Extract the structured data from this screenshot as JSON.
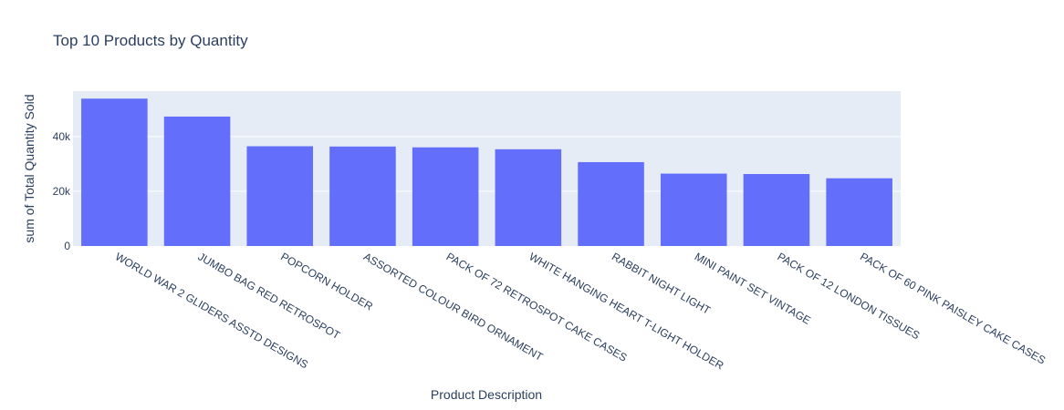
{
  "chart_data": {
    "type": "bar",
    "title": "Top 10 Products by Quantity",
    "xlabel": "Product Description",
    "ylabel": "sum of Total Quantity Sold",
    "categories": [
      "WORLD WAR 2 GLIDERS ASSTD DESIGNS",
      "JUMBO BAG RED RETROSPOT",
      "POPCORN HOLDER",
      "ASSORTED COLOUR BIRD ORNAMENT",
      "PACK OF 72 RETROSPOT CAKE CASES",
      "WHITE HANGING HEART T-LIGHT HOLDER",
      "RABBIT NIGHT LIGHT",
      "MINI PAINT SET VINTAGE",
      "PACK OF 12 LONDON TISSUES",
      "PACK OF 60 PINK PAISLEY CAKE CASES"
    ],
    "values": [
      53850,
      47300,
      36450,
      36350,
      36050,
      35350,
      30650,
      26450,
      26300,
      24750
    ],
    "ylim": [
      0,
      56600
    ],
    "yticks": [
      0,
      20000,
      40000
    ],
    "ytick_labels": [
      "0",
      "20k",
      "40k"
    ],
    "grid": true,
    "colors": {
      "bar": "#636efa",
      "plot_bg": "#e5ecf6",
      "grid": "#ffffff",
      "text": "#2a3f5f"
    }
  }
}
